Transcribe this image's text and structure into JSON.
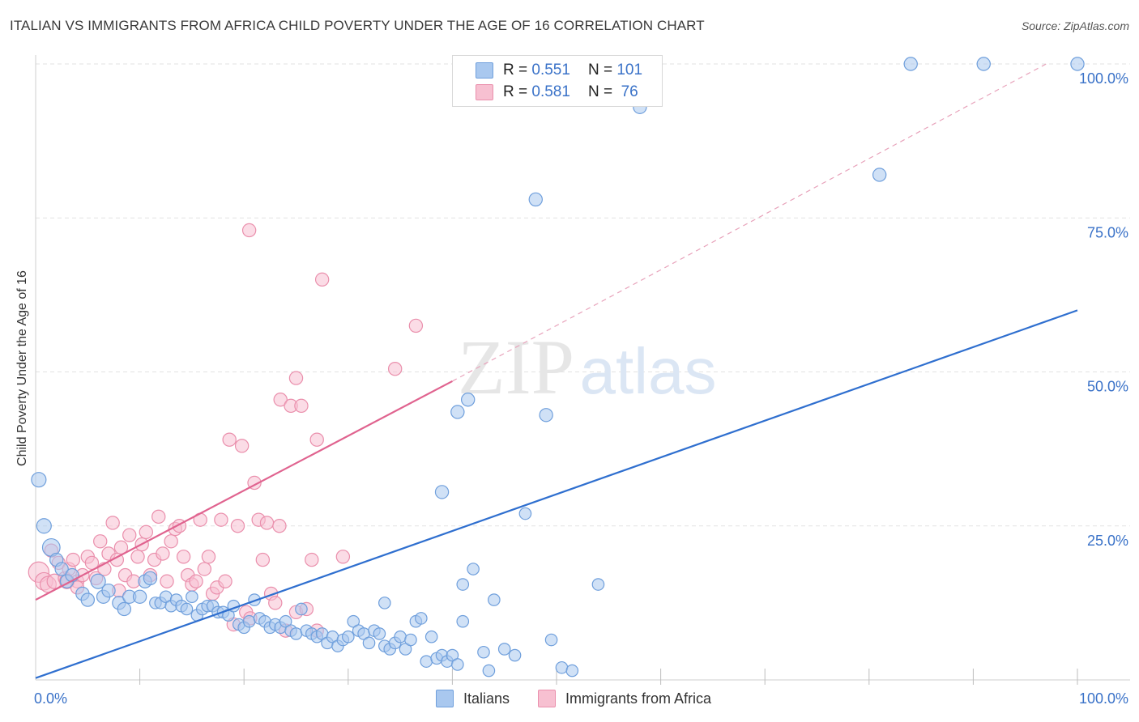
{
  "title": "ITALIAN VS IMMIGRANTS FROM AFRICA CHILD POVERTY UNDER THE AGE OF 16 CORRELATION CHART",
  "source": "Source: ZipAtlas.com",
  "watermark": {
    "zip": "ZIP",
    "atlas": "atlas"
  },
  "colors": {
    "blue_fill": "#a9c8ef",
    "blue_stroke": "#6f9fdc",
    "blue_line": "#2f6fcf",
    "pink_fill": "#f7c0d1",
    "pink_stroke": "#ea8fac",
    "pink_line": "#e0638f",
    "axis_text": "#3a72c8"
  },
  "legend": {
    "rows": [
      {
        "r_label": "R =",
        "r_value": "0.551",
        "n_label": "N =",
        "n_value": "101"
      },
      {
        "r_label": "R =",
        "r_value": "0.581",
        "n_label": "N =",
        "n_value": " 76"
      }
    ]
  },
  "bottom_legend": [
    "Italians",
    "Immigrants from Africa"
  ],
  "chart_data": {
    "type": "scatter",
    "title": "ITALIAN VS IMMIGRANTS FROM AFRICA CHILD POVERTY UNDER THE AGE OF 16 CORRELATION CHART",
    "xlabel": "",
    "ylabel": "Child Poverty Under the Age of 16",
    "xlim": [
      0,
      100
    ],
    "ylim": [
      0,
      100
    ],
    "x_tick_labels": [
      "0.0%",
      "100.0%"
    ],
    "y_tick_labels": [
      "25.0%",
      "50.0%",
      "75.0%",
      "100.0%"
    ],
    "y_ticks": [
      25,
      50,
      75,
      100
    ],
    "series": [
      {
        "name": "Italians",
        "R": 0.551,
        "N": 101,
        "trend": {
          "x": [
            0,
            100
          ],
          "y": [
            0.3,
            60
          ]
        },
        "points": [
          [
            0.3,
            32.5,
            10
          ],
          [
            0.8,
            25,
            10
          ],
          [
            1.5,
            21.5,
            12
          ],
          [
            2,
            19.5,
            9
          ],
          [
            2.5,
            18,
            9
          ],
          [
            3,
            16,
            9
          ],
          [
            3.5,
            17,
            9
          ],
          [
            4.5,
            14,
            9
          ],
          [
            5,
            13,
            9
          ],
          [
            6,
            16,
            10
          ],
          [
            6.5,
            13.5,
            9
          ],
          [
            7,
            14.5,
            9
          ],
          [
            8,
            12.5,
            9
          ],
          [
            8.5,
            11.5,
            9
          ],
          [
            9,
            13.5,
            9
          ],
          [
            10,
            13.5,
            9
          ],
          [
            10.5,
            16,
            9
          ],
          [
            11,
            16.5,
            9
          ],
          [
            11.5,
            12.5,
            8
          ],
          [
            12,
            12.5,
            8
          ],
          [
            12.5,
            13.5,
            8
          ],
          [
            13,
            12,
            8
          ],
          [
            13.5,
            13,
            8
          ],
          [
            14,
            12,
            8
          ],
          [
            14.5,
            11.5,
            8
          ],
          [
            15,
            13.5,
            8
          ],
          [
            15.5,
            10.5,
            8
          ],
          [
            16,
            11.5,
            8
          ],
          [
            16.5,
            12,
            8
          ],
          [
            17,
            12,
            8
          ],
          [
            17.5,
            11,
            8
          ],
          [
            18,
            11,
            8
          ],
          [
            18.5,
            10.5,
            8
          ],
          [
            19,
            12,
            8
          ],
          [
            19.5,
            9,
            8
          ],
          [
            20,
            8.5,
            8
          ],
          [
            20.5,
            9.5,
            8
          ],
          [
            21,
            13,
            8
          ],
          [
            21.5,
            10,
            8
          ],
          [
            22,
            9.5,
            8
          ],
          [
            22.5,
            8.5,
            8
          ],
          [
            23,
            9,
            8
          ],
          [
            23.5,
            8.5,
            8
          ],
          [
            24,
            9.5,
            8
          ],
          [
            24.5,
            8,
            8
          ],
          [
            25,
            7.5,
            8
          ],
          [
            25.5,
            11.5,
            8
          ],
          [
            26,
            8,
            8
          ],
          [
            26.5,
            7.5,
            8
          ],
          [
            27,
            7,
            8
          ],
          [
            27.5,
            7.5,
            8
          ],
          [
            28,
            6,
            8
          ],
          [
            28.5,
            7,
            8
          ],
          [
            29,
            5.5,
            8
          ],
          [
            29.5,
            6.5,
            8
          ],
          [
            30,
            7,
            8
          ],
          [
            30.5,
            9.5,
            8
          ],
          [
            31,
            8,
            8
          ],
          [
            31.5,
            7.5,
            8
          ],
          [
            32,
            6,
            8
          ],
          [
            32.5,
            8,
            8
          ],
          [
            33,
            7.5,
            8
          ],
          [
            33.5,
            5.5,
            8
          ],
          [
            34,
            5,
            8
          ],
          [
            34.5,
            6,
            8
          ],
          [
            35,
            7,
            8
          ],
          [
            35.5,
            5,
            8
          ],
          [
            36,
            6.5,
            8
          ],
          [
            36.5,
            9.5,
            8
          ],
          [
            37,
            10,
            8
          ],
          [
            37.5,
            3,
            8
          ],
          [
            38,
            7,
            8
          ],
          [
            38.5,
            3.5,
            8
          ],
          [
            39,
            4,
            8
          ],
          [
            39.5,
            3,
            8
          ],
          [
            40,
            4,
            8
          ],
          [
            40.5,
            2.5,
            8
          ],
          [
            41,
            9.5,
            8
          ],
          [
            40.5,
            43.5,
            9
          ],
          [
            41.5,
            45.5,
            9
          ],
          [
            39,
            30.5,
            9
          ],
          [
            41,
            15.5,
            8
          ],
          [
            42,
            18,
            8
          ],
          [
            43,
            4.5,
            8
          ],
          [
            43.5,
            1.5,
            8
          ],
          [
            44,
            13,
            8
          ],
          [
            45,
            5,
            8
          ],
          [
            46,
            4,
            8
          ],
          [
            47,
            27,
            8
          ],
          [
            48,
            78,
            9
          ],
          [
            49,
            43,
            9
          ],
          [
            49.5,
            6.5,
            8
          ],
          [
            50.5,
            2,
            8
          ],
          [
            51.5,
            1.5,
            8
          ],
          [
            54,
            15.5,
            8
          ],
          [
            58,
            93,
            9
          ],
          [
            81,
            82,
            9
          ],
          [
            84,
            100,
            9
          ],
          [
            91,
            100,
            9
          ],
          [
            100,
            100,
            9
          ],
          [
            33.5,
            12.5,
            8
          ]
        ]
      },
      {
        "name": "Immigrants from Africa",
        "R": 0.581,
        "N": 76,
        "trend": {
          "x": [
            0,
            40
          ],
          "y": [
            13,
            48.5
          ]
        },
        "trend_dashed": {
          "x": [
            40,
            97
          ],
          "y": [
            48.5,
            100
          ]
        },
        "points": [
          [
            0.3,
            17.5,
            14
          ],
          [
            0.8,
            16,
            12
          ],
          [
            1.2,
            15.5,
            11
          ],
          [
            1.8,
            16,
            10
          ],
          [
            2.2,
            19,
            9
          ],
          [
            2.8,
            16.5,
            9
          ],
          [
            3.2,
            18,
            9
          ],
          [
            3.6,
            19.5,
            9
          ],
          [
            4,
            16,
            9
          ],
          [
            4.5,
            17,
            9
          ],
          [
            5,
            20,
            9
          ],
          [
            5.4,
            19,
            9
          ],
          [
            5.8,
            16.5,
            9
          ],
          [
            6.2,
            22.5,
            9
          ],
          [
            6.6,
            18,
            9
          ],
          [
            7,
            20.5,
            9
          ],
          [
            7.4,
            25.5,
            9
          ],
          [
            7.8,
            19.5,
            9
          ],
          [
            8.2,
            21.5,
            9
          ],
          [
            8.6,
            17,
            9
          ],
          [
            9,
            23.5,
            9
          ],
          [
            9.4,
            16,
            9
          ],
          [
            9.8,
            20,
            9
          ],
          [
            10.2,
            22,
            9
          ],
          [
            10.6,
            24,
            9
          ],
          [
            11,
            17,
            9
          ],
          [
            11.4,
            19.5,
            9
          ],
          [
            11.8,
            26.5,
            9
          ],
          [
            12.2,
            20.5,
            9
          ],
          [
            12.6,
            16,
            9
          ],
          [
            13,
            22.5,
            9
          ],
          [
            13.4,
            24.5,
            9
          ],
          [
            13.8,
            25,
            9
          ],
          [
            14.2,
            20,
            9
          ],
          [
            14.6,
            17,
            9
          ],
          [
            15,
            15.5,
            9
          ],
          [
            15.4,
            16,
            9
          ],
          [
            15.8,
            26,
            9
          ],
          [
            16.2,
            18,
            9
          ],
          [
            16.6,
            20,
            9
          ],
          [
            17,
            14,
            9
          ],
          [
            17.4,
            15,
            9
          ],
          [
            17.8,
            26,
            9
          ],
          [
            18.2,
            16,
            9
          ],
          [
            18.6,
            39,
            9
          ],
          [
            19,
            9,
            9
          ],
          [
            19.4,
            25,
            9
          ],
          [
            19.8,
            38,
            9
          ],
          [
            20.2,
            11,
            9
          ],
          [
            20.6,
            10,
            9
          ],
          [
            21,
            32,
            9
          ],
          [
            21.4,
            26,
            9
          ],
          [
            21.8,
            19.5,
            9
          ],
          [
            22.2,
            25.5,
            9
          ],
          [
            22.6,
            14,
            9
          ],
          [
            23,
            12.5,
            9
          ],
          [
            23.4,
            25,
            9
          ],
          [
            24,
            8,
            9
          ],
          [
            25,
            11,
            9
          ],
          [
            26,
            11.5,
            9
          ],
          [
            27,
            8,
            9
          ],
          [
            20.5,
            73,
            9
          ],
          [
            23.5,
            45.5,
            9
          ],
          [
            24.5,
            44.5,
            9
          ],
          [
            25,
            49,
            9
          ],
          [
            25.5,
            44.5,
            9
          ],
          [
            26.5,
            19.5,
            9
          ],
          [
            27,
            39,
            9
          ],
          [
            27.5,
            65,
            9
          ],
          [
            29.5,
            20,
            9
          ],
          [
            34.5,
            50.5,
            9
          ],
          [
            36.5,
            57.5,
            9
          ],
          [
            3,
            16,
            10
          ],
          [
            4,
            15,
            9
          ],
          [
            8,
            14.5,
            9
          ],
          [
            1.5,
            21,
            9
          ]
        ]
      }
    ]
  }
}
